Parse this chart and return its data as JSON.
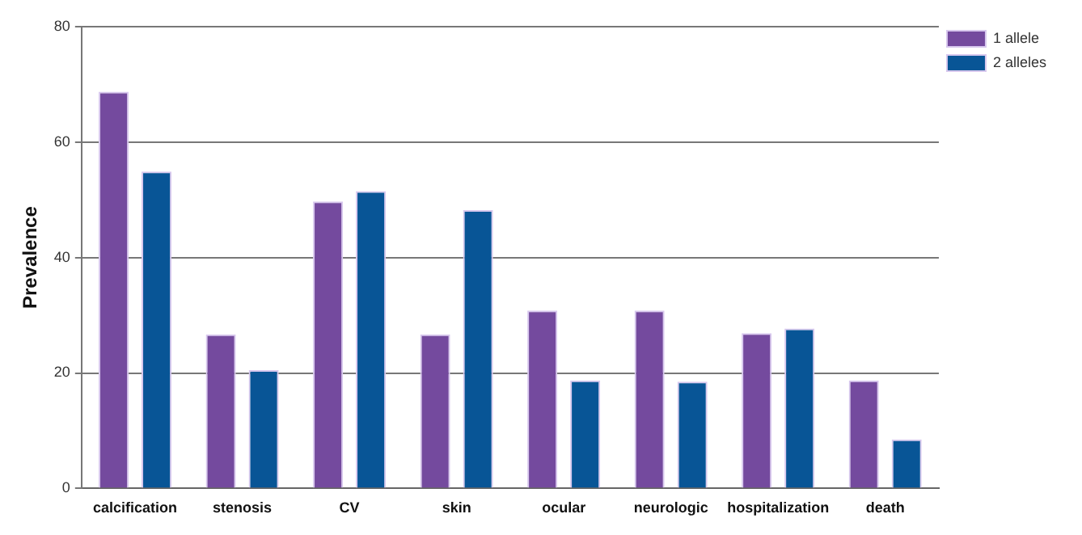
{
  "chart_data": {
    "type": "bar",
    "ylabel": "Prevalence",
    "categories": [
      "calcification",
      "stenosis",
      "CV",
      "skin",
      "ocular",
      "neurologic",
      "hospitalization",
      "death"
    ],
    "series": [
      {
        "name": "1 allele",
        "color": "#744a9e",
        "values": [
          68.7,
          26.7,
          49.7,
          26.7,
          30.8,
          30.8,
          26.9,
          18.7
        ]
      },
      {
        "name": "2 alleles",
        "color": "#085596",
        "values": [
          54.9,
          20.5,
          51.5,
          48.2,
          18.7,
          18.5,
          27.7,
          8.5
        ]
      }
    ],
    "ylim": [
      0,
      80
    ],
    "yticks": [
      0,
      20,
      40,
      60,
      80
    ],
    "grid": "y",
    "legend": "top right"
  }
}
